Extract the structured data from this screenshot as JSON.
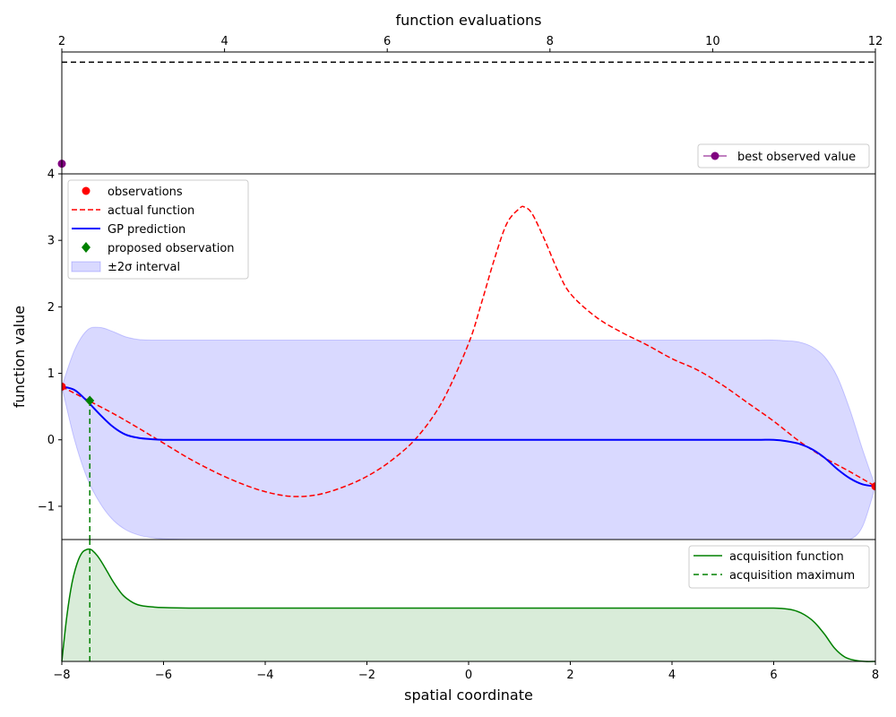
{
  "chart_data": [
    {
      "panel": "convergence",
      "type": "line",
      "xlabel": "function evaluations",
      "xlim": [
        2,
        12
      ],
      "xticks": [
        2,
        4,
        6,
        8,
        10,
        12
      ],
      "ylim": [
        4,
        5.8
      ],
      "max_reference_y": 5.65,
      "series": [
        {
          "name": "best observed value",
          "color": "#800080",
          "x": [
            2
          ],
          "y": [
            4.15
          ]
        }
      ],
      "legend": {
        "position": "bottom-right",
        "entries": [
          "best observed value"
        ]
      }
    },
    {
      "panel": "gp",
      "type": "line",
      "ylabel": "function value",
      "xlim": [
        -8,
        8
      ],
      "ylim": [
        -1.5,
        4
      ],
      "yticks": [
        -1,
        0,
        1,
        2,
        3,
        4
      ],
      "observations": {
        "name": "observations",
        "color": "#ff0000",
        "x": [
          -8,
          8
        ],
        "y": [
          0.8,
          -0.7
        ]
      },
      "actual_function": {
        "name": "actual function",
        "color": "#ff0000",
        "x": [
          -8,
          -7.5,
          -7,
          -6.5,
          -6,
          -5.5,
          -5,
          -4.5,
          -4,
          -3.5,
          -3,
          -2.5,
          -2,
          -1.5,
          -1,
          -0.5,
          0,
          0.25,
          0.5,
          0.75,
          1,
          1.1,
          1.25,
          1.5,
          1.75,
          2,
          2.5,
          3,
          3.5,
          4,
          4.5,
          5,
          5.5,
          6,
          6.5,
          7,
          7.5,
          8
        ],
        "y": [
          0.8,
          0.6,
          0.4,
          0.18,
          -0.05,
          -0.28,
          -0.48,
          -0.65,
          -0.78,
          -0.85,
          -0.83,
          -0.72,
          -0.55,
          -0.3,
          0.05,
          0.6,
          1.45,
          2.05,
          2.7,
          3.25,
          3.48,
          3.5,
          3.4,
          3.0,
          2.55,
          2.2,
          1.85,
          1.62,
          1.43,
          1.22,
          1.05,
          0.82,
          0.55,
          0.28,
          -0.02,
          -0.27,
          -0.48,
          -0.7
        ]
      },
      "gp_prediction": {
        "name": "GP prediction",
        "color": "#0000ff",
        "x": [
          -8,
          -7.75,
          -7.5,
          -7.25,
          -7,
          -6.75,
          -6.5,
          -6.25,
          -6,
          -5.5,
          -5,
          0,
          5,
          5.5,
          5.75,
          6,
          6.25,
          6.5,
          6.75,
          7,
          7.25,
          7.5,
          7.75,
          8
        ],
        "y": [
          0.8,
          0.75,
          0.58,
          0.38,
          0.2,
          0.08,
          0.03,
          0.01,
          0.0,
          0.0,
          0.0,
          0.0,
          0.0,
          0.0,
          0.0,
          0.0,
          -0.02,
          -0.06,
          -0.14,
          -0.27,
          -0.44,
          -0.58,
          -0.67,
          -0.7
        ]
      },
      "interval": {
        "name": "±2σ interval",
        "color": "#0000ff",
        "x": [
          -8,
          -7.75,
          -7.5,
          -7.25,
          -7,
          -6.75,
          -6.5,
          -6.25,
          -6,
          -5.5,
          -5,
          0,
          5,
          5.5,
          5.75,
          6,
          6.25,
          6.5,
          6.75,
          7,
          7.25,
          7.5,
          7.75,
          8
        ],
        "upper": [
          0.8,
          1.35,
          1.65,
          1.69,
          1.63,
          1.55,
          1.51,
          1.5,
          1.5,
          1.5,
          1.5,
          1.5,
          1.5,
          1.5,
          1.5,
          1.5,
          1.49,
          1.47,
          1.4,
          1.25,
          0.95,
          0.45,
          -0.15,
          -0.7
        ],
        "lower": [
          0.8,
          0.0,
          -0.58,
          -0.95,
          -1.2,
          -1.35,
          -1.43,
          -1.47,
          -1.49,
          -1.5,
          -1.5,
          -1.5,
          -1.5,
          -1.5,
          -1.5,
          -1.5,
          -1.5,
          -1.5,
          -1.5,
          -1.5,
          -1.5,
          -1.5,
          -1.3,
          -0.7
        ]
      },
      "proposed_observation": {
        "name": "proposed observation",
        "color": "#008000",
        "x": -7.45,
        "y": 0.59
      },
      "legend": {
        "position": "top-left",
        "entries": [
          "observations",
          "actual function",
          "GP prediction",
          "proposed observation",
          "±2σ interval"
        ]
      }
    },
    {
      "panel": "acquisition",
      "type": "area",
      "xlabel": "spatial coordinate",
      "xlim": [
        -8,
        8
      ],
      "xticks": [
        -8,
        -6,
        -4,
        -2,
        0,
        2,
        4,
        6,
        8
      ],
      "xtick_labels": [
        "−8",
        "−6",
        "−4",
        "−2",
        "0",
        "2",
        "4",
        "6",
        "8"
      ],
      "ylim": [
        0,
        1.12
      ],
      "acquisition_function": {
        "name": "acquisition function",
        "color": "#008000",
        "x": [
          -8,
          -7.9,
          -7.8,
          -7.7,
          -7.6,
          -7.5,
          -7.45,
          -7.4,
          -7.3,
          -7.2,
          -7.1,
          -7.0,
          -6.9,
          -6.8,
          -6.7,
          -6.6,
          -6.5,
          -6.4,
          -6.2,
          -6,
          -5.5,
          -5,
          0,
          5,
          5.5,
          6,
          6.2,
          6.4,
          6.6,
          6.8,
          7.0,
          7.2,
          7.4,
          7.6,
          7.8,
          8
        ],
        "y": [
          0.0,
          0.42,
          0.72,
          0.9,
          1.0,
          1.03,
          1.03,
          1.02,
          0.97,
          0.9,
          0.82,
          0.74,
          0.67,
          0.61,
          0.57,
          0.54,
          0.52,
          0.51,
          0.5,
          0.495,
          0.49,
          0.49,
          0.49,
          0.49,
          0.49,
          0.49,
          0.485,
          0.47,
          0.43,
          0.36,
          0.25,
          0.12,
          0.04,
          0.01,
          0.0,
          0.0
        ]
      },
      "acquisition_maximum": {
        "name": "acquisition maximum",
        "color": "#008000",
        "x": -7.45,
        "y": 1.03
      },
      "legend": {
        "position": "top-right",
        "entries": [
          "acquisition function",
          "acquisition maximum"
        ]
      }
    }
  ]
}
